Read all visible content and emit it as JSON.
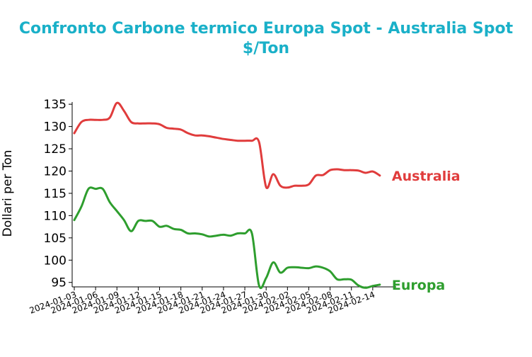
{
  "chart_data": {
    "type": "line",
    "title": "Confronto Carbone termico Europa Spot - Australia Spot",
    "subtitle": "$/Ton",
    "xlabel": "",
    "ylabel": "Dollari per Ton",
    "ylim": [
      94,
      135.5
    ],
    "yticks": [
      95,
      100,
      105,
      110,
      115,
      120,
      125,
      130,
      135
    ],
    "xlim": [
      "2024-01-03",
      "2024-02-17"
    ],
    "xticks": [
      "2024-01-03",
      "2024-01-06",
      "2024-01-09",
      "2024-01-12",
      "2024-01-15",
      "2024-01-18",
      "2024-01-21",
      "2024-01-24",
      "2024-01-27",
      "2024-01-30",
      "2024-02-02",
      "2024-02-05",
      "2024-02-08",
      "2024-02-11",
      "2024-02-14"
    ],
    "grid": false,
    "legend": "labels at line ends",
    "series": [
      {
        "name": "Australia",
        "color": "#e03c3c",
        "x": [
          "2024-01-03",
          "2024-01-04",
          "2024-01-05",
          "2024-01-06",
          "2024-01-07",
          "2024-01-08",
          "2024-01-09",
          "2024-01-10",
          "2024-01-11",
          "2024-01-12",
          "2024-01-13",
          "2024-01-14",
          "2024-01-15",
          "2024-01-16",
          "2024-01-17",
          "2024-01-18",
          "2024-01-19",
          "2024-01-20",
          "2024-01-21",
          "2024-01-22",
          "2024-01-23",
          "2024-01-24",
          "2024-01-25",
          "2024-01-26",
          "2024-01-27",
          "2024-01-28",
          "2024-01-29",
          "2024-01-30",
          "2024-01-31",
          "2024-02-01",
          "2024-02-02",
          "2024-02-03",
          "2024-02-04",
          "2024-02-05",
          "2024-02-06",
          "2024-02-07",
          "2024-02-08",
          "2024-02-09",
          "2024-02-10",
          "2024-02-11",
          "2024-02-12",
          "2024-02-13",
          "2024-02-14",
          "2024-02-15"
        ],
        "values": [
          128.5,
          131.0,
          131.5,
          131.5,
          131.5,
          132.0,
          135.3,
          133.5,
          131.0,
          130.7,
          130.7,
          130.7,
          130.5,
          129.7,
          129.5,
          129.3,
          128.5,
          128.0,
          128.0,
          127.8,
          127.5,
          127.2,
          127.0,
          126.8,
          126.8,
          126.8,
          126.5,
          116.4,
          119.3,
          116.7,
          116.3,
          116.7,
          116.7,
          117.0,
          119.0,
          119.1,
          120.2,
          120.4,
          120.2,
          120.2,
          120.1,
          119.6,
          119.9,
          119.0
        ]
      },
      {
        "name": "Europa",
        "color": "#2e9e2e",
        "x": [
          "2024-01-03",
          "2024-01-04",
          "2024-01-05",
          "2024-01-06",
          "2024-01-07",
          "2024-01-08",
          "2024-01-09",
          "2024-01-10",
          "2024-01-11",
          "2024-01-12",
          "2024-01-13",
          "2024-01-14",
          "2024-01-15",
          "2024-01-16",
          "2024-01-17",
          "2024-01-18",
          "2024-01-19",
          "2024-01-20",
          "2024-01-21",
          "2024-01-22",
          "2024-01-23",
          "2024-01-24",
          "2024-01-25",
          "2024-01-26",
          "2024-01-27",
          "2024-01-28",
          "2024-01-29",
          "2024-01-30",
          "2024-01-31",
          "2024-02-01",
          "2024-02-02",
          "2024-02-03",
          "2024-02-04",
          "2024-02-05",
          "2024-02-06",
          "2024-02-07",
          "2024-02-08",
          "2024-02-09",
          "2024-02-10",
          "2024-02-11",
          "2024-02-12",
          "2024-02-13",
          "2024-02-14",
          "2024-02-15"
        ],
        "values": [
          109.0,
          112.0,
          116.0,
          116.0,
          116.0,
          113.0,
          111.0,
          109.0,
          106.5,
          108.8,
          108.8,
          108.8,
          107.5,
          107.7,
          107.0,
          106.8,
          106.0,
          106.0,
          105.8,
          105.3,
          105.5,
          105.7,
          105.5,
          106.0,
          106.0,
          106.0,
          94.3,
          96.0,
          99.5,
          97.2,
          98.3,
          98.4,
          98.3,
          98.2,
          98.6,
          98.3,
          97.5,
          95.7,
          95.7,
          95.6,
          94.3,
          93.8,
          94.2,
          94.5
        ]
      }
    ]
  }
}
